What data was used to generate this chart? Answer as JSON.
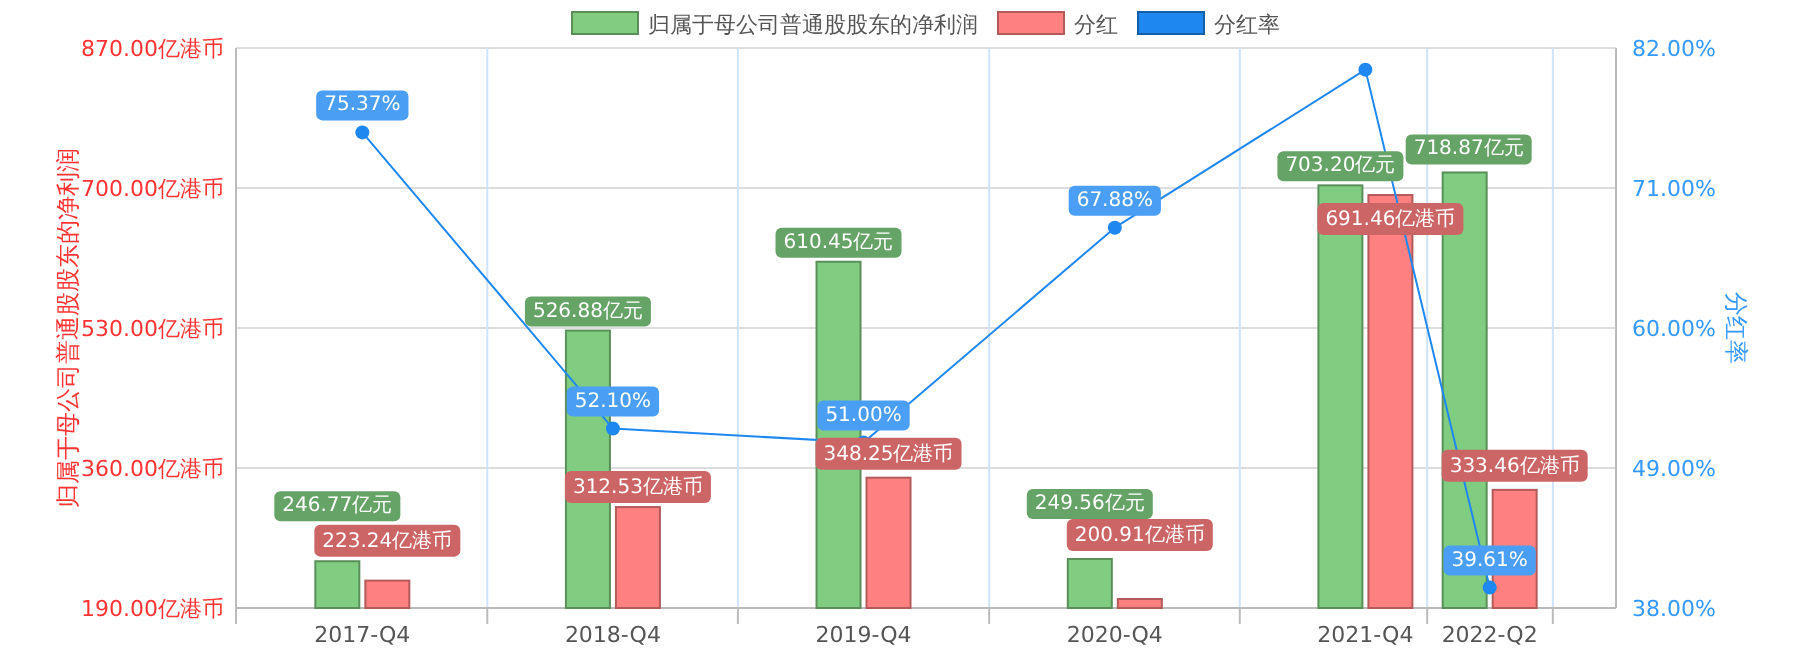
{
  "chart_data": {
    "type": "bar",
    "ylabel": "归属于母公司普通股股东的净利润",
    "y2label": "分红率",
    "x": [
      "2017-12-31",
      "2018-12-31",
      "2019-12-31",
      "2020-12-31",
      "2021-12-31",
      "2022-06-30"
    ],
    "xlim": [
      "2017-06-30",
      "2022-12-31"
    ],
    "xticks": [
      {
        "value": "2017-06-30",
        "label": null
      },
      {
        "value": "2017-12-31",
        "label": "2017-Q4"
      },
      {
        "value": "2018-07-01",
        "label": null
      },
      {
        "value": "2018-12-31",
        "label": "2018-Q4"
      },
      {
        "value": "2019-07-01",
        "label": null
      },
      {
        "value": "2019-12-31",
        "label": "2019-Q4"
      },
      {
        "value": "2020-07-01",
        "label": null
      },
      {
        "value": "2020-12-31",
        "label": "2020-Q4"
      },
      {
        "value": "2021-07-01",
        "label": null
      },
      {
        "value": "2021-12-31",
        "label": "2021-Q4"
      },
      {
        "value": "2022-03-31",
        "label": null
      },
      {
        "value": "2022-06-30",
        "label": "2022-Q2"
      },
      {
        "value": "2022-09-30",
        "label": null
      }
    ],
    "ylim": [
      190,
      870
    ],
    "yticks": [
      {
        "value": 190,
        "label": "190.00亿港币"
      },
      {
        "value": 360,
        "label": "360.00亿港币"
      },
      {
        "value": 530,
        "label": "530.00亿港币"
      },
      {
        "value": 700,
        "label": "700.00亿港币"
      },
      {
        "value": 870,
        "label": "870.00亿港币"
      }
    ],
    "y2lim": [
      38,
      82
    ],
    "y2ticks": [
      {
        "value": 38,
        "label": "38.00%"
      },
      {
        "value": 49,
        "label": "49.00%"
      },
      {
        "value": 60,
        "label": "60.00%"
      },
      {
        "value": 71,
        "label": "71.00%"
      },
      {
        "value": 82,
        "label": "82.00%"
      }
    ],
    "grid": true,
    "legend": "top",
    "marker": "circle",
    "series": [
      {
        "name": "归属于母公司普通股股东的净利润",
        "color": "#80cc80",
        "values": [
          246.77,
          526.88,
          610.45,
          249.56,
          703.2,
          718.87
        ],
        "value_labels": [
          "246.77亿元",
          "526.88亿元",
          "610.45亿元",
          "249.56亿元",
          "703.20亿元",
          "718.87亿元"
        ]
      },
      {
        "name": "分红",
        "color": "#ff8080",
        "values": [
          223.24,
          312.53,
          348.25,
          200.91,
          691.46,
          333.46
        ],
        "value_labels": [
          "223.24亿港币",
          "312.53亿港币",
          "348.25亿港币",
          "200.91亿港币",
          "691.46亿港币",
          "333.46亿港币"
        ]
      },
      {
        "name": "分红率",
        "type": "line",
        "axis": "y2",
        "color": "#1e88f0",
        "values": [
          75.37,
          52.1,
          51.0,
          67.88,
          80.3,
          39.61
        ],
        "value_labels": [
          "75.37%",
          "52.10%",
          "51.00%",
          "67.88%",
          null,
          "39.61%"
        ]
      }
    ]
  }
}
